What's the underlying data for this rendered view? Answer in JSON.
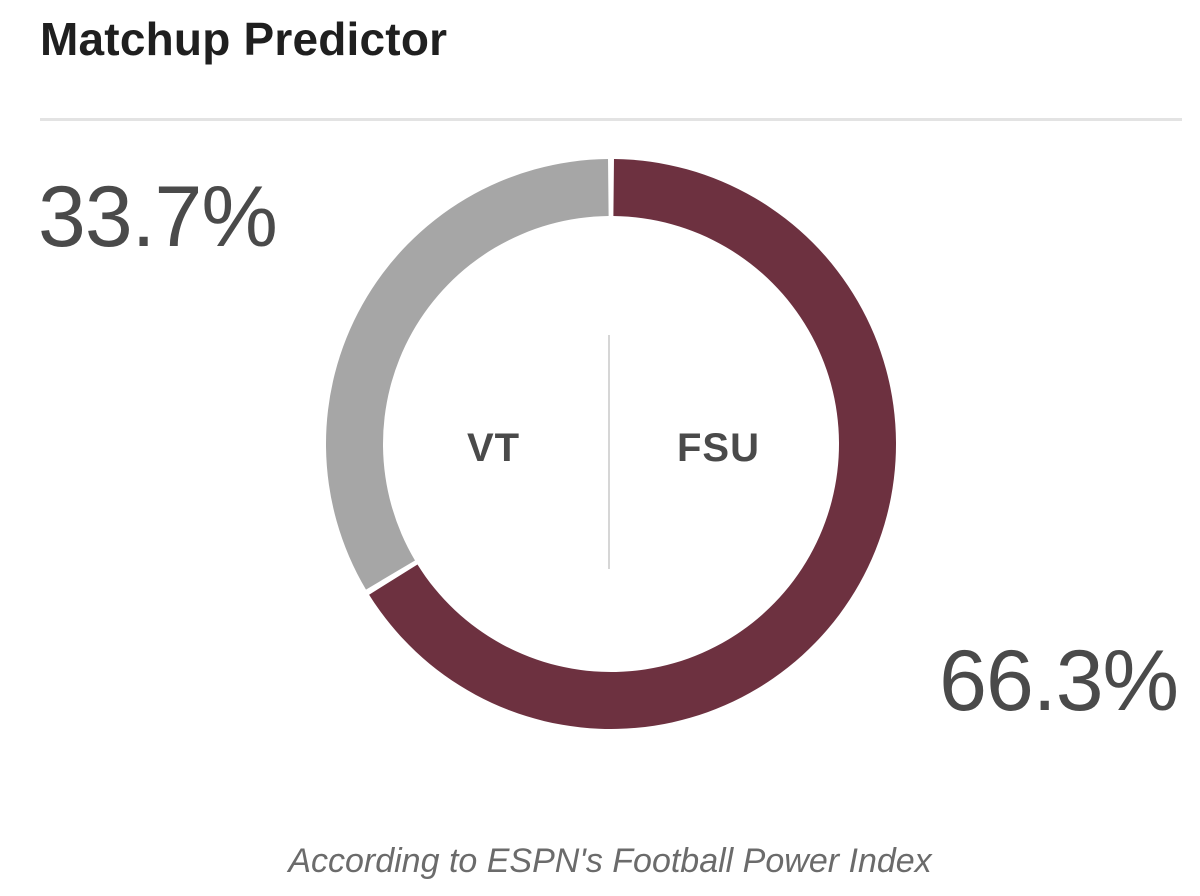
{
  "widget": {
    "title": "Matchup Predictor",
    "footnote": "According to ESPN's Football Power Index"
  },
  "teams": {
    "left": {
      "abbr": "VT",
      "win_pct_label": "33.7%"
    },
    "right": {
      "abbr": "FSU",
      "win_pct_label": "66.3%"
    }
  },
  "chart_data": {
    "type": "pie",
    "categories": [
      "VT",
      "FSU"
    ],
    "values": [
      33.7,
      66.3
    ],
    "colors": [
      "#a6a6a6",
      "#6d3140"
    ],
    "title": "Matchup Predictor"
  }
}
